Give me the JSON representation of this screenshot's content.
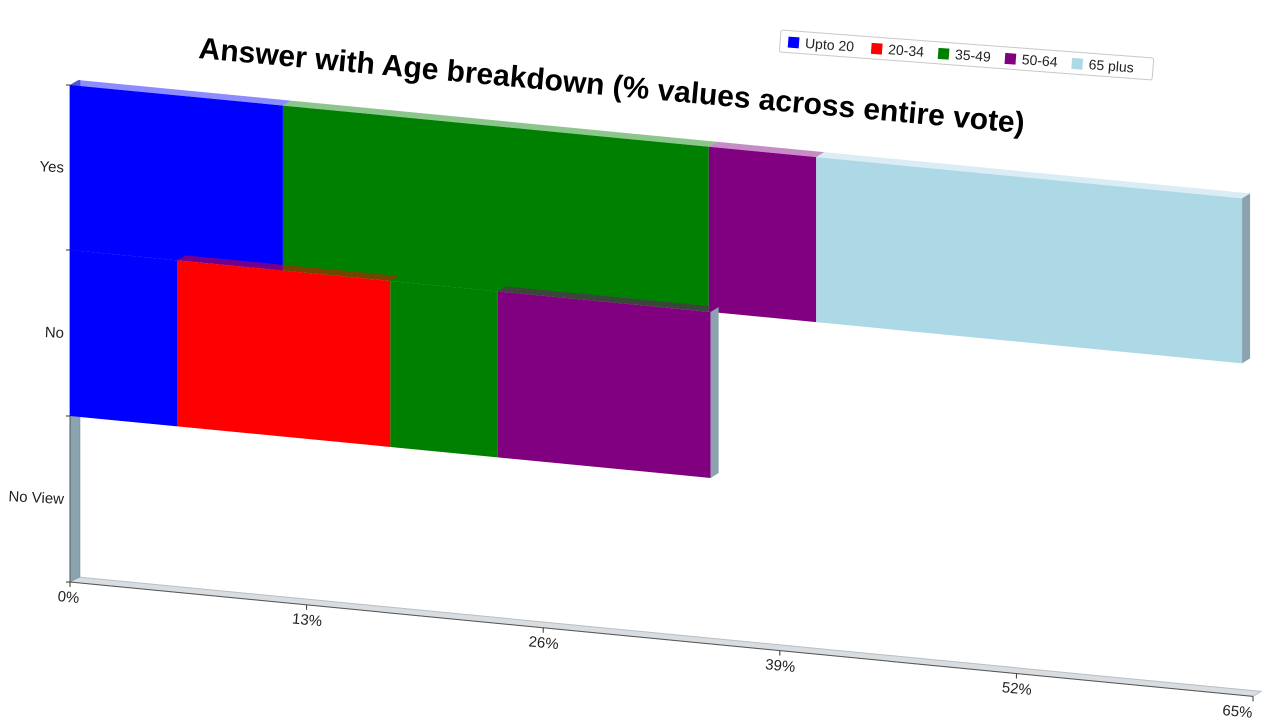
{
  "chart_data": {
    "type": "bar",
    "orientation": "horizontal",
    "stacked": true,
    "three_d": true,
    "title": "Answer with Age breakdown (% values across entire vote)",
    "categories": [
      "Yes",
      "No",
      "No View"
    ],
    "series": [
      {
        "name": "Upto 20",
        "color": "#0000ff",
        "values": [
          11.7,
          5.9,
          0
        ]
      },
      {
        "name": "20-34",
        "color": "#ff0000",
        "values": [
          0,
          11.7,
          0
        ]
      },
      {
        "name": "35-49",
        "color": "#008000",
        "values": [
          23.4,
          5.9,
          0
        ]
      },
      {
        "name": "50-64",
        "color": "#800080",
        "values": [
          5.9,
          11.7,
          0
        ]
      },
      {
        "name": "65 plus",
        "color": "#add8e6",
        "values": [
          23.4,
          0,
          0
        ]
      }
    ],
    "xaxis": {
      "min": 0,
      "max": 65,
      "ticks": [
        "0%",
        "13%",
        "26%",
        "39%",
        "52%",
        "65%"
      ]
    },
    "legend": "top-right",
    "grid": false
  }
}
